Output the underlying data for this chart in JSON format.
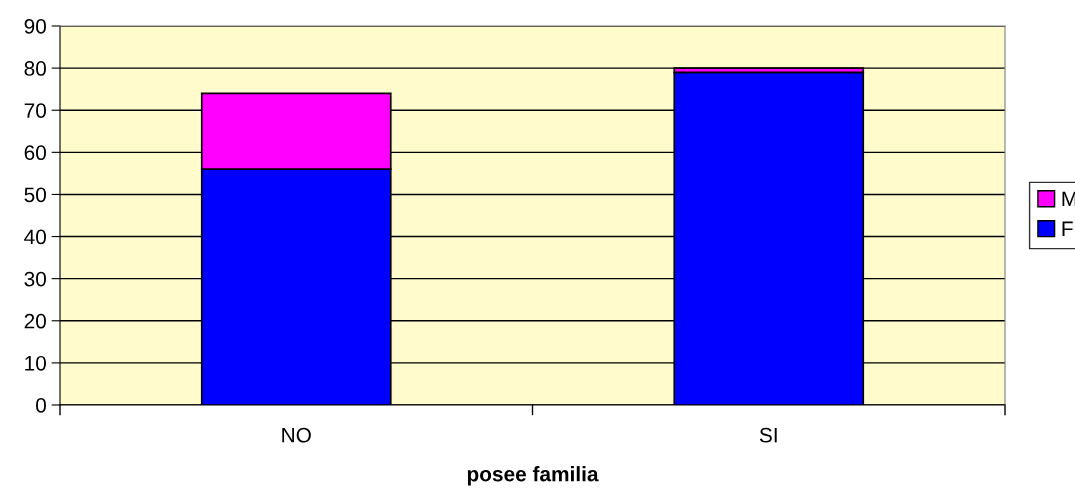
{
  "chart_data": {
    "type": "bar",
    "stacked": true,
    "xlabel": "posee familia",
    "categories": [
      "NO",
      "SI"
    ],
    "series": [
      {
        "name": "F",
        "color": "#0000ff",
        "values": [
          56,
          79
        ]
      },
      {
        "name": "M",
        "color": "#ff00ff",
        "values": [
          18,
          1
        ]
      }
    ],
    "ylim": [
      0,
      90
    ],
    "yticks": [
      0,
      10,
      20,
      30,
      40,
      50,
      60,
      70,
      80,
      90
    ],
    "grid": "y",
    "legend": "right"
  }
}
